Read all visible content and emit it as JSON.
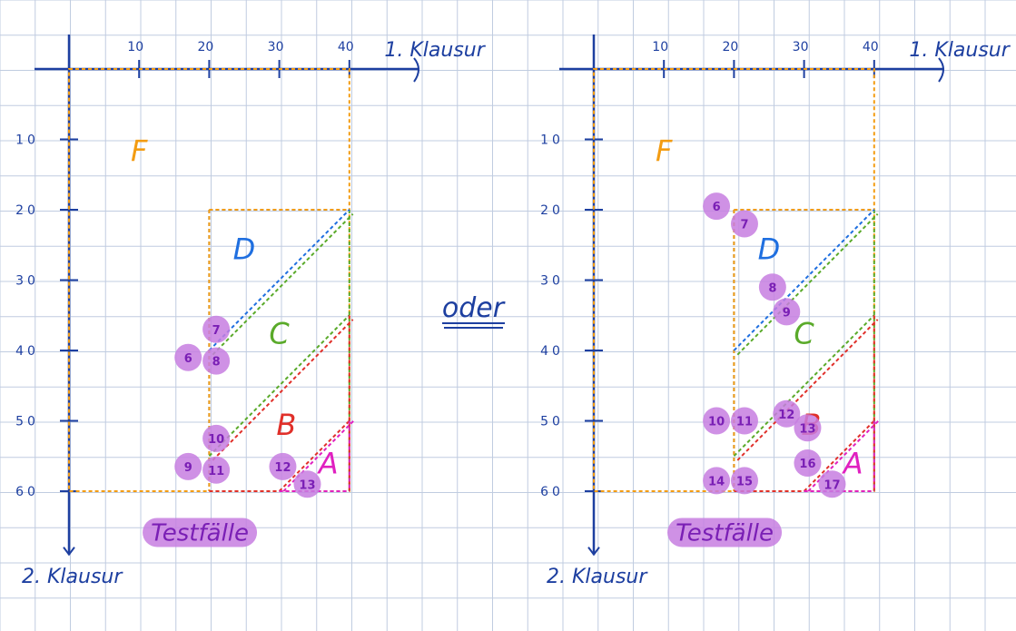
{
  "divider_word": "oder",
  "panels": [
    {
      "x_axis_label": "1. Klausur",
      "y_axis_label": "2. Klausur",
      "x_ticks": [
        "10",
        "20",
        "30",
        "40"
      ],
      "y_ticks": [
        "10",
        "20",
        "30",
        "40",
        "50",
        "60"
      ],
      "region_labels": [
        "F",
        "D",
        "C",
        "B",
        "A"
      ],
      "testcases_label": "Testfälle",
      "points": [
        {
          "label": "6",
          "x": 17,
          "y": 41
        },
        {
          "label": "7",
          "x": 21,
          "y": 37
        },
        {
          "label": "8",
          "x": 21,
          "y": 41.5
        },
        {
          "label": "9",
          "x": 17,
          "y": 56.5
        },
        {
          "label": "10",
          "x": 21,
          "y": 52.5
        },
        {
          "label": "11",
          "x": 21,
          "y": 57
        },
        {
          "label": "12",
          "x": 30.5,
          "y": 56.5
        },
        {
          "label": "13",
          "x": 34,
          "y": 59
        }
      ]
    },
    {
      "x_axis_label": "1. Klausur",
      "y_axis_label": "2. Klausur",
      "x_ticks": [
        "10",
        "20",
        "30",
        "40"
      ],
      "y_ticks": [
        "10",
        "20",
        "30",
        "40",
        "50",
        "60"
      ],
      "region_labels": [
        "F",
        "D",
        "C",
        "B",
        "A"
      ],
      "testcases_label": "Testfälle",
      "points": [
        {
          "label": "6",
          "x": 17.5,
          "y": 19.5
        },
        {
          "label": "7",
          "x": 21.5,
          "y": 22
        },
        {
          "label": "8",
          "x": 25.5,
          "y": 31
        },
        {
          "label": "9",
          "x": 27.5,
          "y": 34.5
        },
        {
          "label": "10",
          "x": 17.5,
          "y": 50
        },
        {
          "label": "11",
          "x": 21.5,
          "y": 50
        },
        {
          "label": "12",
          "x": 27.5,
          "y": 49
        },
        {
          "label": "13",
          "x": 30.5,
          "y": 51
        },
        {
          "label": "14",
          "x": 17.5,
          "y": 58.5
        },
        {
          "label": "15",
          "x": 21.5,
          "y": 58.5
        },
        {
          "label": "16",
          "x": 30.5,
          "y": 56
        },
        {
          "label": "17",
          "x": 34,
          "y": 59
        }
      ]
    }
  ],
  "colors": {
    "axis": "#1d3fa0",
    "grid": "#c0cce0",
    "F": "#f39c12",
    "D": "#1f6fe0",
    "C": "#5aaa2a",
    "B": "#e0302a",
    "A": "#e020c0",
    "highlight": "#c77ee0",
    "point_text": "#7a1fb5"
  }
}
